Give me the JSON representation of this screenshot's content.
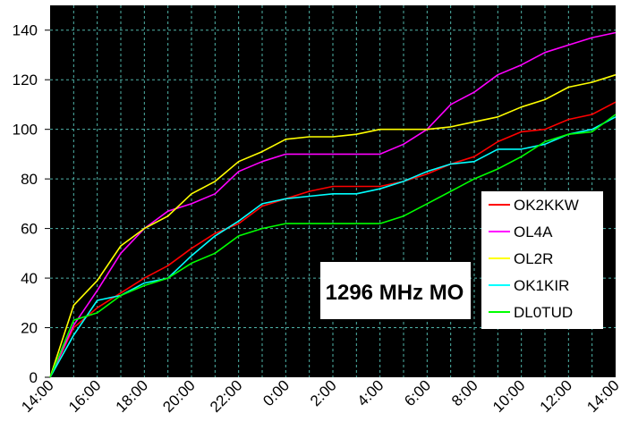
{
  "chart_data": {
    "type": "line",
    "title": "1296 MHz MO",
    "xlabel": "",
    "ylabel": "",
    "ylim": [
      0,
      150
    ],
    "grid": true,
    "legend_position": "right",
    "background": "#000000",
    "grid_color": "#4fb3a9",
    "y_ticks": [
      "0",
      "20",
      "40",
      "60",
      "80",
      "100",
      "120",
      "140"
    ],
    "x_tick_labels": [
      "14:00",
      "16:00",
      "18:00",
      "20:00",
      "22:00",
      "0:00",
      "2:00",
      "4:00",
      "6:00",
      "8:00",
      "10:00",
      "12:00",
      "14:00"
    ],
    "x": [
      "14:00",
      "15:00",
      "16:00",
      "17:00",
      "18:00",
      "19:00",
      "20:00",
      "21:00",
      "22:00",
      "23:00",
      "0:00",
      "1:00",
      "2:00",
      "3:00",
      "4:00",
      "5:00",
      "6:00",
      "7:00",
      "8:00",
      "9:00",
      "10:00",
      "11:00",
      "12:00",
      "13:00",
      "14:00"
    ],
    "series": [
      {
        "name": "OK2KKW",
        "color": "#ff0000",
        "values": [
          0,
          20,
          28,
          34,
          40,
          45,
          52,
          58,
          62,
          69,
          72,
          75,
          77,
          77,
          77,
          79,
          82,
          86,
          89,
          95,
          99,
          100,
          104,
          106,
          111
        ]
      },
      {
        "name": "OL4A",
        "color": "#ff00ff",
        "values": [
          0,
          21,
          35,
          50,
          60,
          67,
          70,
          74,
          83,
          87,
          90,
          90,
          90,
          90,
          90,
          94,
          100,
          110,
          115,
          122,
          126,
          131,
          134,
          137,
          139
        ]
      },
      {
        "name": "OL2R",
        "color": "#ffff00",
        "values": [
          0,
          29,
          39,
          53,
          60,
          65,
          74,
          79,
          87,
          91,
          96,
          97,
          97,
          98,
          100,
          100,
          100,
          101,
          103,
          105,
          109,
          112,
          117,
          119,
          122
        ]
      },
      {
        "name": "OK1KIR",
        "color": "#00ffff",
        "values": [
          0,
          17,
          31,
          33,
          38,
          40,
          49,
          57,
          63,
          70,
          72,
          73,
          74,
          74,
          76,
          79,
          83,
          86,
          87,
          92,
          92,
          94,
          98,
          100,
          105
        ]
      },
      {
        "name": "DL0TUD",
        "color": "#00ff00",
        "values": [
          0,
          23,
          26,
          33,
          37,
          40,
          46,
          50,
          57,
          60,
          62,
          62,
          62,
          62,
          62,
          65,
          70,
          75,
          80,
          84,
          89,
          95,
          98,
          99,
          106
        ]
      }
    ]
  }
}
